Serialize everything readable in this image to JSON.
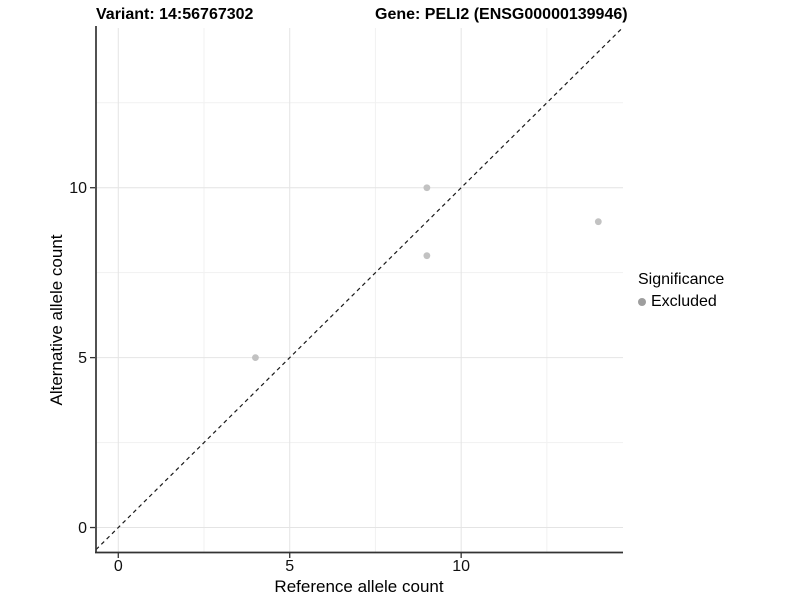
{
  "chart_data": {
    "type": "scatter",
    "title_left": "Variant: 14:56767302",
    "title_right": "Gene: PELI2 (ENSG00000139946)",
    "xlabel": "Reference allele count",
    "ylabel": "Alternative allele count",
    "xlim": [
      -0.65,
      14.72
    ],
    "ylim": [
      -0.72,
      14.7
    ],
    "xticks": [
      0,
      5,
      10
    ],
    "yticks": [
      0,
      5,
      10
    ],
    "minor_ticks_x": [
      2.5,
      7.5,
      12.5
    ],
    "minor_ticks_y": [
      2.5,
      7.5,
      12.5
    ],
    "grid": true,
    "identity_line": {
      "slope": 1,
      "intercept": 0,
      "style": "dashed",
      "color": "#1a1a1a"
    },
    "series": [
      {
        "name": "Excluded",
        "color": "#c2c2c2",
        "points": [
          {
            "x": 4,
            "y": 5
          },
          {
            "x": 9,
            "y": 10
          },
          {
            "x": 9,
            "y": 8
          },
          {
            "x": 14,
            "y": 9
          }
        ]
      }
    ],
    "legend": {
      "title": "Significance",
      "position": "right",
      "items": [
        {
          "label": "Excluded",
          "color": "#9e9e9e"
        }
      ]
    },
    "colors": {
      "background": "#ffffff",
      "grid_major": "#e4e4e4",
      "grid_minor": "#f1f1f1",
      "axis": "#333333",
      "tick_text": "#111111",
      "point": "#c2c2c2"
    }
  }
}
